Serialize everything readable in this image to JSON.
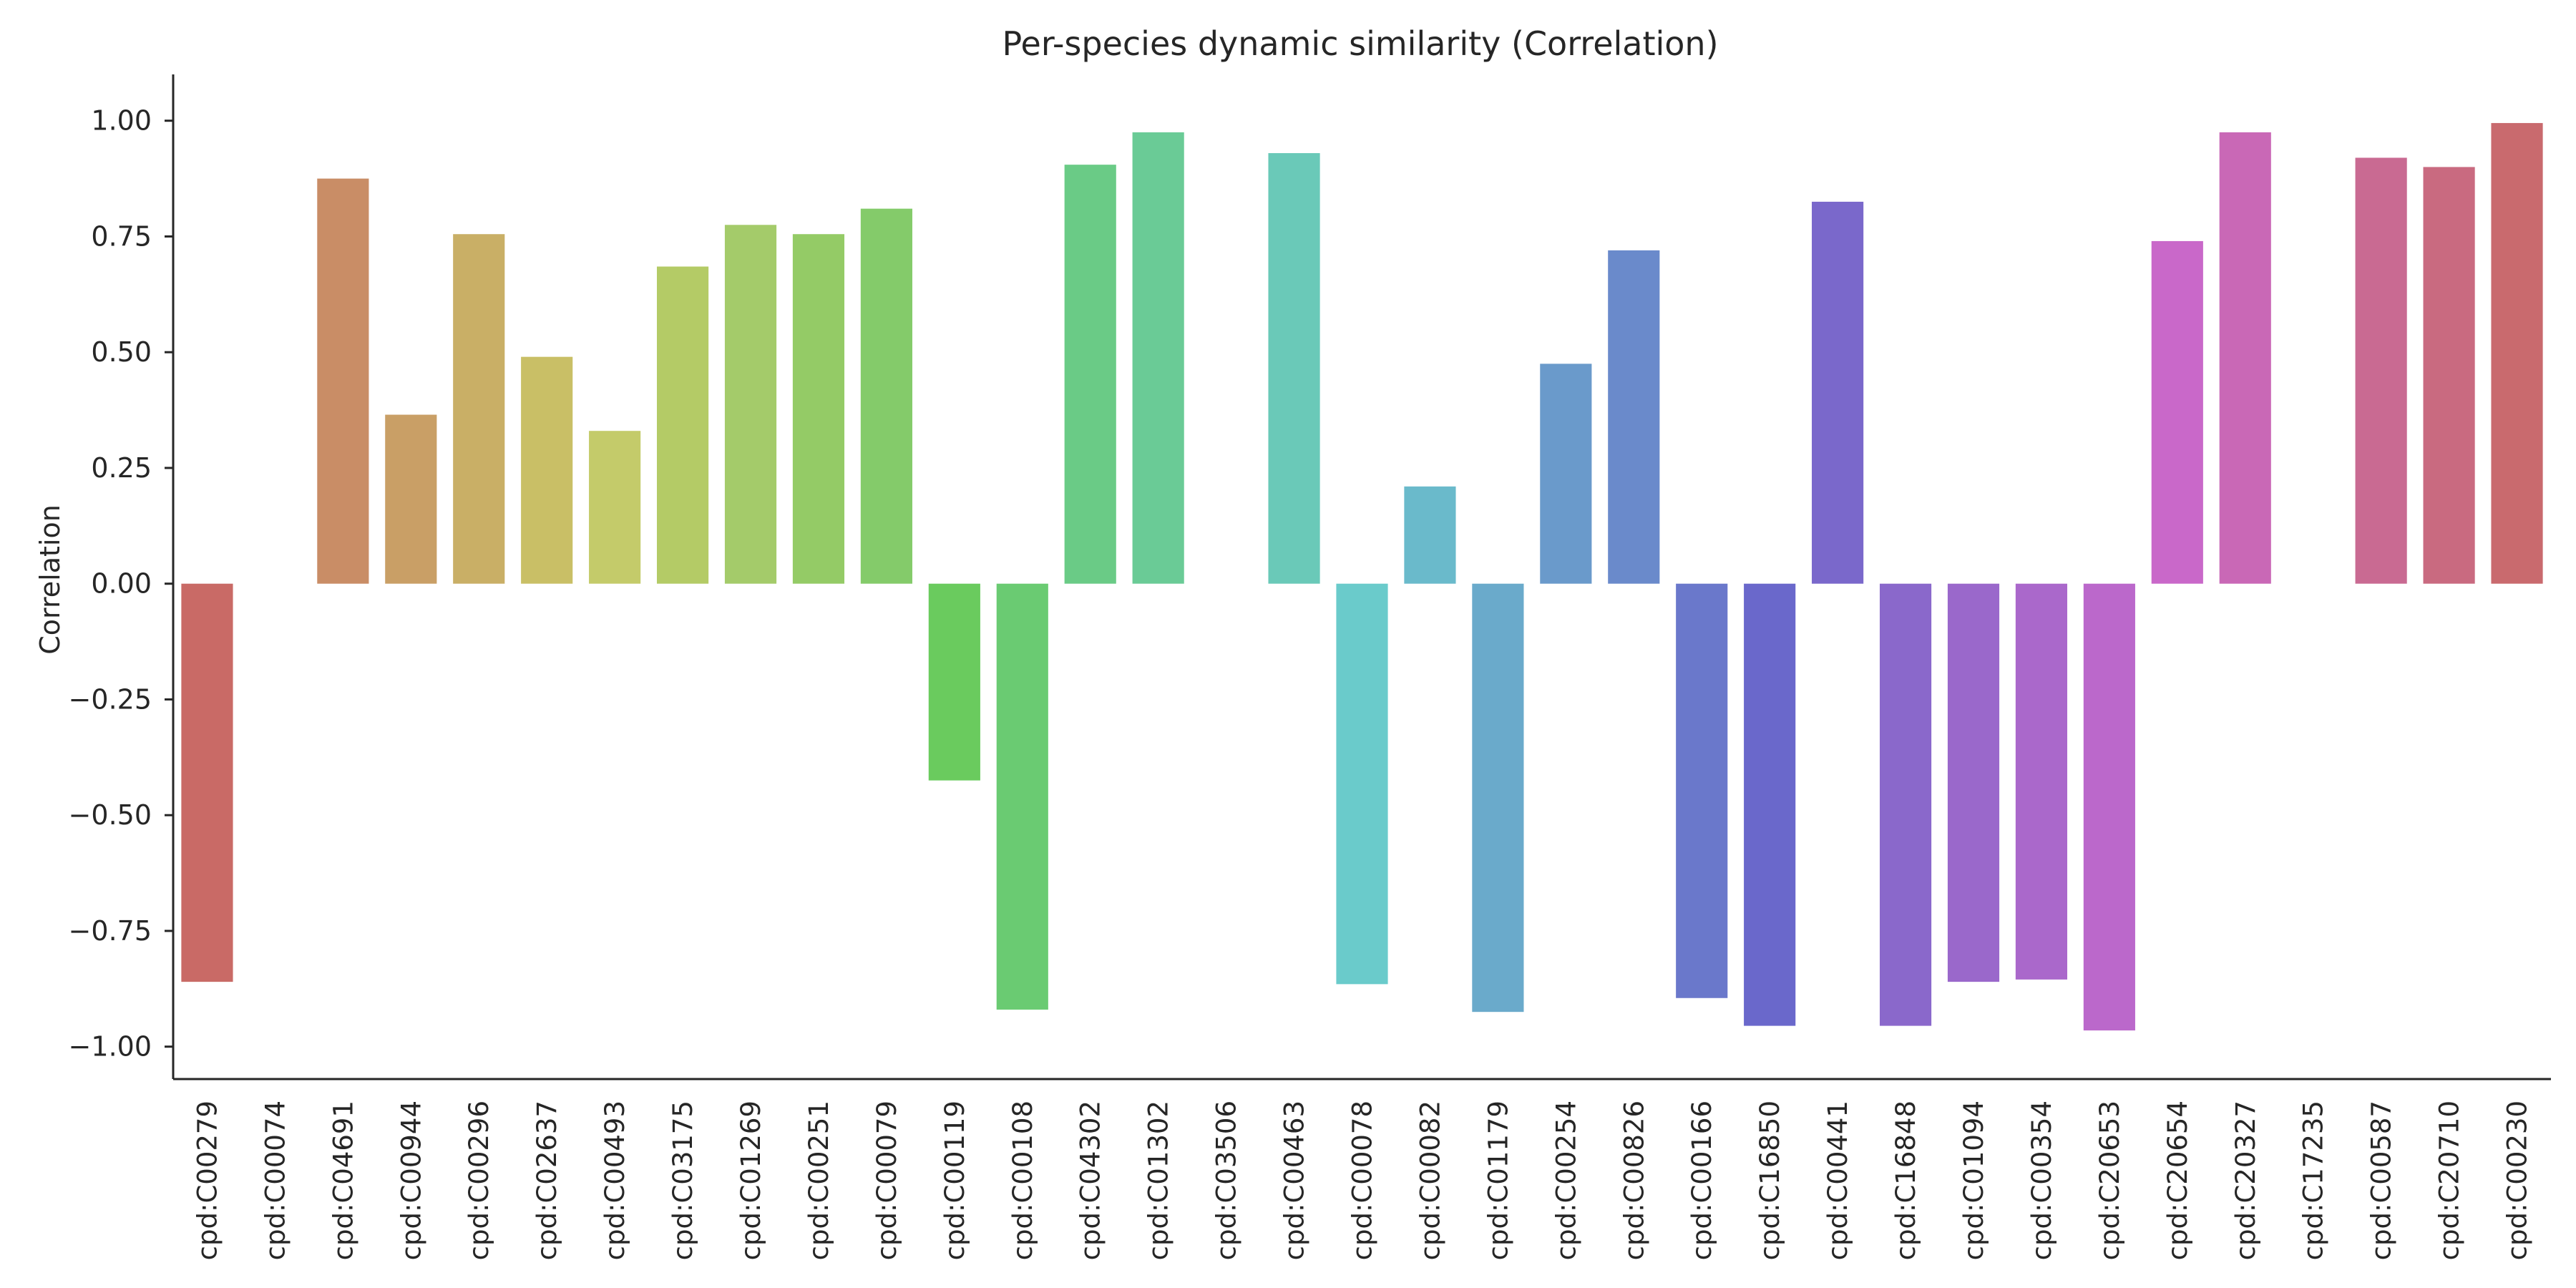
{
  "chart_data": {
    "type": "bar",
    "title": "Per-species dynamic similarity (Correlation)",
    "xlabel": "",
    "ylabel": "Correlation",
    "ylim": [
      -1.07,
      1.1
    ],
    "yticks": [
      1.0,
      0.75,
      0.5,
      0.25,
      0.0,
      -0.25,
      -0.5,
      -0.75,
      -1.0
    ],
    "ytick_labels": [
      "1.00",
      "0.75",
      "0.50",
      "0.25",
      "0.00",
      "−0.25",
      "−0.50",
      "−0.75",
      "−1.00"
    ],
    "grid": false,
    "legend": "none",
    "categories": [
      "cpd:C00279",
      "cpd:C00074",
      "cpd:C04691",
      "cpd:C00944",
      "cpd:C00296",
      "cpd:C02637",
      "cpd:C00493",
      "cpd:C03175",
      "cpd:C01269",
      "cpd:C00251",
      "cpd:C00079",
      "cpd:C00119",
      "cpd:C00108",
      "cpd:C04302",
      "cpd:C01302",
      "cpd:C03506",
      "cpd:C00463",
      "cpd:C00078",
      "cpd:C00082",
      "cpd:C01179",
      "cpd:C00254",
      "cpd:C00826",
      "cpd:C00166",
      "cpd:C16850",
      "cpd:C00441",
      "cpd:C16848",
      "cpd:C01094",
      "cpd:C00354",
      "cpd:C20653",
      "cpd:C20654",
      "cpd:C20327",
      "cpd:C17235",
      "cpd:C00587",
      "cpd:C20710",
      "cpd:C00230"
    ],
    "values": [
      -0.86,
      0.0,
      0.875,
      0.365,
      0.755,
      0.49,
      0.33,
      0.685,
      0.775,
      0.755,
      0.81,
      -0.425,
      -0.92,
      0.905,
      0.975,
      0.0,
      0.93,
      -0.865,
      0.21,
      -0.925,
      0.475,
      0.72,
      -0.895,
      -0.955,
      0.825,
      -0.955,
      -0.86,
      -0.855,
      -0.965,
      0.74,
      0.975,
      0.0,
      0.92,
      0.9,
      0.995
    ],
    "colors": [
      "#c96a66",
      "#cb7a64",
      "#c98d66",
      "#c99f66",
      "#c9af66",
      "#c9bf66",
      "#c4cb6a",
      "#b4cb66",
      "#a4cb6a",
      "#94cb66",
      "#84cb6a",
      "#6acb5e",
      "#6acb72",
      "#6acb86",
      "#6acb96",
      "#6acba8",
      "#6ac9b8",
      "#6acbcb",
      "#6abacb",
      "#6aaacb",
      "#6a9acb",
      "#6a8acb",
      "#6a78cb",
      "#6a68cb",
      "#7a68cb",
      "#8a68cb",
      "#9a68cb",
      "#aa68cb",
      "#bb68cb",
      "#c968c9",
      "#c968b6",
      "#c968a4",
      "#c96a92",
      "#c96a80",
      "#c96a6e"
    ]
  }
}
